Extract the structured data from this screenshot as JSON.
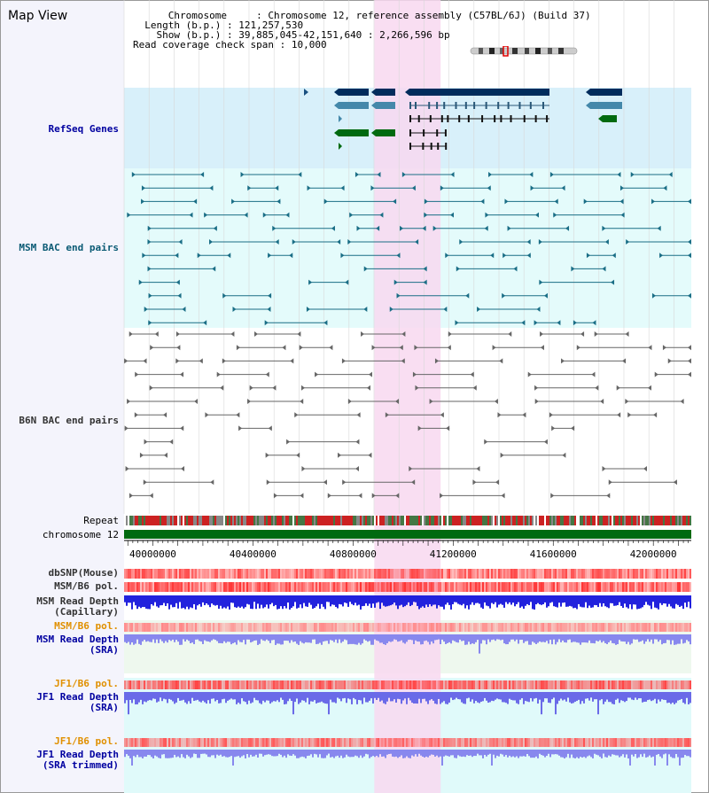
{
  "header": {
    "title": "Map View",
    "chromosome_key": "Chromosome",
    "chromosome_value": "Chromosome 12, reference assembly (C57BL/6J) (Build 37)",
    "length_key": "Length (b.p.)",
    "length_value": "121,257,530",
    "show_key": "Show (b.p.)",
    "show_value": "39,885,045-42,151,640 : 2,266,596 bp",
    "span_key": "Read coverage check span",
    "span_value": "10,000"
  },
  "tracks": {
    "refseq": "RefSeq Genes",
    "msm_bac": "MSM BAC end pairs",
    "b6n_bac": "B6N BAC end pairs",
    "repeat": "Repeat",
    "chrom": "chromosome 12",
    "dbsnp": "dbSNP(Mouse)",
    "msm_b6_pol_1": "MSM/B6 pol.",
    "msm_depth_cap_1": "MSM Read Depth",
    "msm_depth_cap_2": "(Capillary)",
    "msm_b6_pol_2": "MSM/B6 pol.",
    "msm_depth_sra_1": "MSM Read Depth",
    "msm_depth_sra_2": "(SRA)",
    "jf1_pol_1": "JF1/B6 pol.",
    "jf1_depth_1": "JF1 Read Depth",
    "jf1_depth_2": "(SRA)",
    "jf1_pol_2": "JF1/B6 pol.",
    "jf1_trim_1": "JF1 Read Depth",
    "jf1_trim_2": "(SRA trimmed)"
  },
  "axis": {
    "ticks": [
      "40000000",
      "40400000",
      "40800000",
      "41200000",
      "41600000",
      "42000000"
    ],
    "tick_values": [
      40000000,
      40400000,
      40800000,
      41200000,
      41600000,
      42000000
    ],
    "range": [
      39885045,
      42151640
    ]
  },
  "highlight_range": [
    40885000,
    41150000
  ],
  "colors": {
    "highlight": "#f8d8f0",
    "refseq_bg": "#d8f0fa",
    "msm_bg": "#e4fbfb",
    "gene_navy": "#002c5c",
    "gene_steel": "#4488aa",
    "gene_green": "#006a10",
    "msm_pair": "#1a6e86",
    "b6n_pair": "#666666",
    "depth_blue": "#2222dd",
    "depth_violet": "#8888ee",
    "pol_red": "#ee3333"
  }
}
